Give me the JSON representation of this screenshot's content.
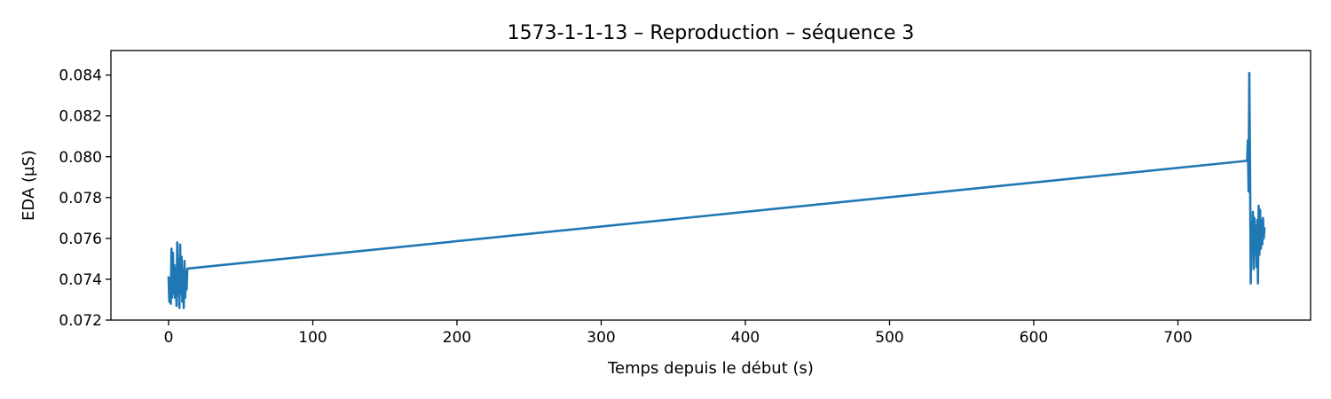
{
  "chart_data": {
    "type": "line",
    "title": "1573-1-1-13 – Reproduction – séquence 3",
    "xlabel": "Temps depuis le début (s)",
    "ylabel": "EDA (µS)",
    "xlim": [
      -40,
      792
    ],
    "ylim": [
      0.072,
      0.0852
    ],
    "x_ticks": [
      0,
      100,
      200,
      300,
      400,
      500,
      600,
      700
    ],
    "x_tick_labels": [
      "0",
      "100",
      "200",
      "300",
      "400",
      "500",
      "600",
      "700"
    ],
    "y_ticks": [
      0.072,
      0.074,
      0.076,
      0.078,
      0.08,
      0.082,
      0.084
    ],
    "y_tick_labels": [
      "0.072",
      "0.074",
      "0.076",
      "0.078",
      "0.080",
      "0.082",
      "0.084"
    ],
    "grid": false,
    "colors": {
      "series": "#1f77b4",
      "axes": "#000000",
      "background": "#ffffff"
    },
    "series": [
      {
        "x": [
          0,
          0.5,
          1,
          1.5,
          2,
          2.5,
          3,
          3.5,
          4,
          4.5,
          5,
          5.5,
          6,
          6.5,
          7,
          7.5,
          8,
          8.5,
          9,
          9.5,
          10,
          10.5,
          11,
          11.5,
          12,
          12.5,
          13,
          748,
          748.5,
          749,
          749.5,
          750,
          750.5,
          751,
          751.5,
          752,
          752.5,
          753,
          753.5,
          754,
          754.5,
          755,
          755.5,
          756,
          756.5,
          757,
          757.5,
          758,
          758.5,
          759,
          759.5,
          760
        ],
        "y": [
          0.0741,
          0.0729,
          0.074,
          0.0728,
          0.0755,
          0.0731,
          0.0753,
          0.0733,
          0.0747,
          0.0731,
          0.0745,
          0.0727,
          0.0758,
          0.0732,
          0.075,
          0.0726,
          0.0757,
          0.0733,
          0.0751,
          0.0729,
          0.0745,
          0.0726,
          0.0749,
          0.0731,
          0.0744,
          0.0735,
          0.07452,
          0.0798,
          0.0808,
          0.0783,
          0.0841,
          0.0795,
          0.0738,
          0.0768,
          0.0755,
          0.0773,
          0.0745,
          0.077,
          0.0752,
          0.0766,
          0.0746,
          0.0769,
          0.0738,
          0.0776,
          0.0752,
          0.0774,
          0.0755,
          0.0769,
          0.0757,
          0.077,
          0.076,
          0.0765
        ]
      }
    ]
  }
}
